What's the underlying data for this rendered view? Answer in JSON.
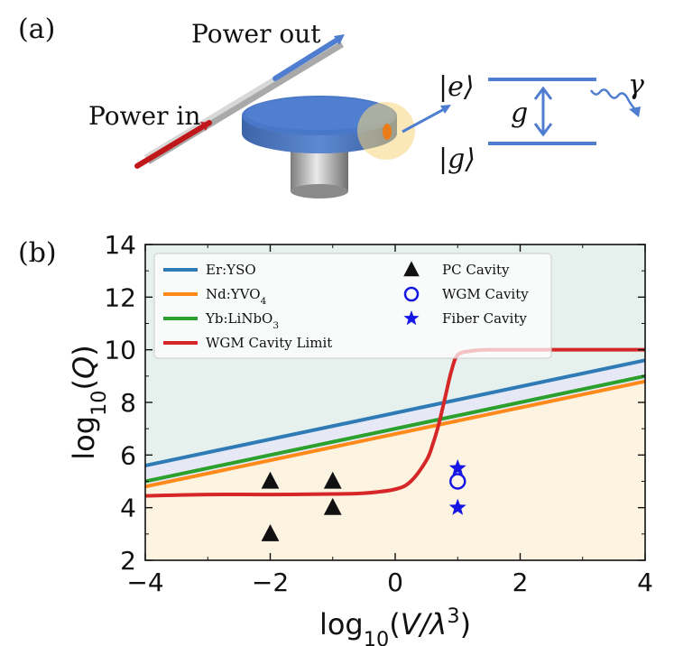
{
  "panel_a": {
    "label": "(a)",
    "power_out_label": "Power out",
    "power_in_label": "Power in",
    "state_e": "|e⟩",
    "state_g": "|g⟩",
    "coupling": "g",
    "decay": "γ"
  },
  "colors": {
    "er_yso": "#2f7bb6",
    "nd_yvo4": "#ff8a1a",
    "yb_linbo3": "#2ca02c",
    "wgm_limit": "#d62728",
    "wgm_marker": "#1515e6",
    "fiber_marker": "#1515e6",
    "pc_marker": "#111111",
    "region_top": "#e6f1ee",
    "region_mid": "#e6e8f6",
    "region_bottom": "#fcf4e0",
    "disk_blue": "#4a78c8"
  },
  "chart_data": {
    "type": "line",
    "panel_label": "(b)",
    "xlabel": "log10(V/λ3)",
    "ylabel": "log10(Q)",
    "xlim": [
      -4,
      4
    ],
    "ylim": [
      2,
      14
    ],
    "xticks": [
      -4,
      -2,
      0,
      2,
      4
    ],
    "yticks": [
      2,
      4,
      6,
      8,
      10,
      12,
      14
    ],
    "grid": false,
    "legend_position": "top-left",
    "series": [
      {
        "name": "Er:YSO",
        "type": "line",
        "x": [
          -4,
          4
        ],
        "y": [
          5.6,
          9.6
        ]
      },
      {
        "name": "Nd:YVO4",
        "type": "line",
        "x": [
          -4,
          4
        ],
        "y": [
          4.8,
          8.8
        ]
      },
      {
        "name": "Yb:LiNbO3",
        "type": "line",
        "x": [
          -4,
          4
        ],
        "y": [
          5.0,
          9.0
        ]
      },
      {
        "name": "WGM Cavity Limit",
        "type": "line",
        "x": [
          -4,
          -3,
          -2,
          -1,
          -0.5,
          0,
          0.25,
          0.5,
          0.6,
          0.7,
          0.8,
          0.9,
          1.0,
          1.2,
          1.5,
          2,
          3,
          4
        ],
        "y": [
          4.45,
          4.5,
          4.5,
          4.52,
          4.55,
          4.7,
          5.0,
          5.8,
          6.4,
          7.2,
          8.2,
          9.2,
          9.8,
          9.95,
          10.0,
          10.0,
          10.0,
          10.0
        ]
      },
      {
        "name": "PC Cavity",
        "type": "scatter",
        "marker": "triangle",
        "x": [
          -2,
          -2,
          -1,
          -1
        ],
        "y": [
          5,
          3,
          5,
          4
        ]
      },
      {
        "name": "WGM Cavity",
        "type": "scatter",
        "marker": "open-circle",
        "x": [
          1
        ],
        "y": [
          5
        ]
      },
      {
        "name": "Fiber Cavity",
        "type": "scatter",
        "marker": "star",
        "x": [
          1,
          1
        ],
        "y": [
          5.5,
          4
        ]
      }
    ],
    "legend": {
      "left": [
        {
          "label": "Er:YSO",
          "series": 0
        },
        {
          "label": "Nd:YVO4",
          "series": 1
        },
        {
          "label": "Yb:LiNbO3",
          "series": 2
        },
        {
          "label": "WGM Cavity Limit",
          "series": 3
        }
      ],
      "right": [
        {
          "label": "PC Cavity",
          "series": 4
        },
        {
          "label": "WGM Cavity",
          "series": 5
        },
        {
          "label": "Fiber Cavity",
          "series": 6
        }
      ]
    }
  }
}
